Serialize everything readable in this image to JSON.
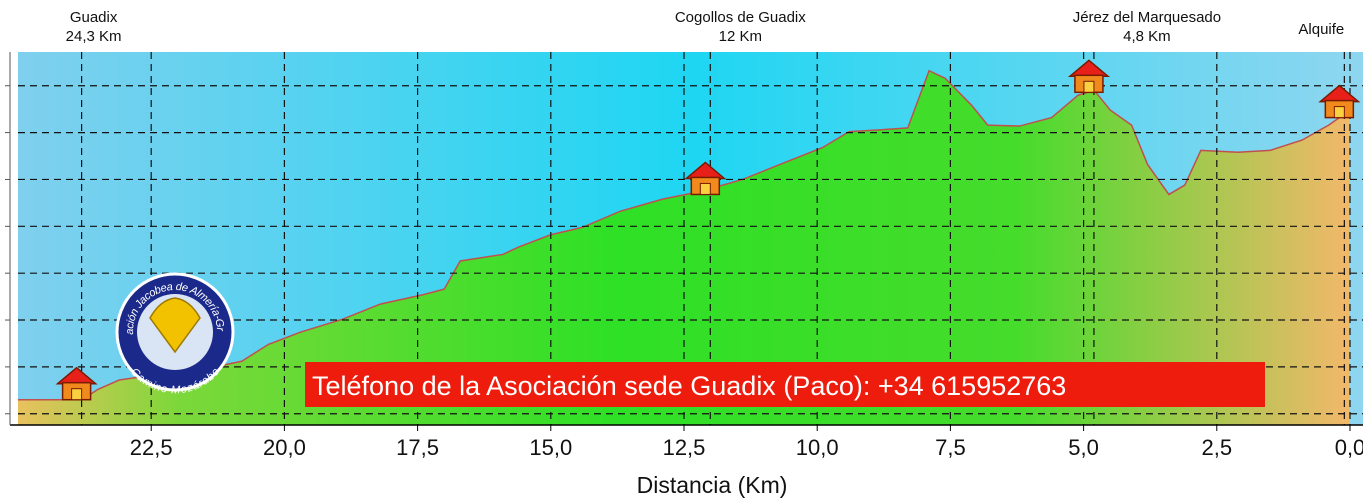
{
  "chart_data": {
    "type": "area",
    "xlabel": "Distancia (Km)",
    "x": [
      25.0,
      23.8,
      23.5,
      23.1,
      22.5,
      22.0,
      21.4,
      20.8,
      20.3,
      19.7,
      18.9,
      18.2,
      17.4,
      17.0,
      16.7,
      15.9,
      15.6,
      15.0,
      14.4,
      13.7,
      12.9,
      12.2,
      11.4,
      10.7,
      9.9,
      9.4,
      8.8,
      8.3,
      7.9,
      7.6,
      7.1,
      6.8,
      6.2,
      5.6,
      5.1,
      4.8,
      4.5,
      4.1,
      3.8,
      3.4,
      3.1,
      2.8,
      2.1,
      1.5,
      0.9,
      0.4,
      0.0
    ],
    "values": [
      915,
      915,
      926,
      936,
      941,
      945,
      949,
      956,
      974,
      987,
      1001,
      1017,
      1027,
      1033,
      1063,
      1070,
      1078,
      1091,
      1099,
      1116,
      1129,
      1137,
      1150,
      1166,
      1184,
      1201,
      1203,
      1205,
      1266,
      1258,
      1229,
      1208,
      1207,
      1216,
      1240,
      1245,
      1224,
      1208,
      1166,
      1134,
      1144,
      1181,
      1179,
      1181,
      1192,
      1208,
      1224
    ],
    "line_color": "#c0504d",
    "xlim": [
      25,
      0
    ],
    "xticks": [
      {
        "value": 22.5,
        "label": "22,5"
      },
      {
        "value": 20,
        "label": "20,0"
      },
      {
        "value": 17.5,
        "label": "17,5"
      },
      {
        "value": 15,
        "label": "15,0"
      },
      {
        "value": 12.5,
        "label": "12,5"
      },
      {
        "value": 10,
        "label": "10,0"
      },
      {
        "value": 7.5,
        "label": "7,5"
      },
      {
        "value": 5,
        "label": "5,0"
      },
      {
        "value": 2.5,
        "label": "2,5"
      },
      {
        "value": 0,
        "label": "0,0"
      }
    ],
    "ylim": [
      888,
      1286
    ],
    "yticks": [
      900,
      950,
      1000,
      1050,
      1100,
      1150,
      1200,
      1250
    ],
    "grid": true,
    "places": [
      {
        "name": "Guadix",
        "distance": "24,3 Km",
        "x": 23.9,
        "elevation": 915
      },
      {
        "name": "Cogollos de Guadix",
        "distance": "12 Km",
        "x": 12.1,
        "elevation": 1134
      },
      {
        "name": "Jérez del Marquesado",
        "distance": "4,8 Km",
        "x": 4.9,
        "elevation": 1243
      },
      {
        "name": "Alquife",
        "x": 0.2,
        "elevation": 1216
      }
    ],
    "banner": "Teléfono de la Asociación sede Guadix (Paco): +34 615952763",
    "logo": {
      "top": "Asociación Jacobea de Almería-Granada",
      "bottom": "Camino Mozárabe"
    }
  }
}
